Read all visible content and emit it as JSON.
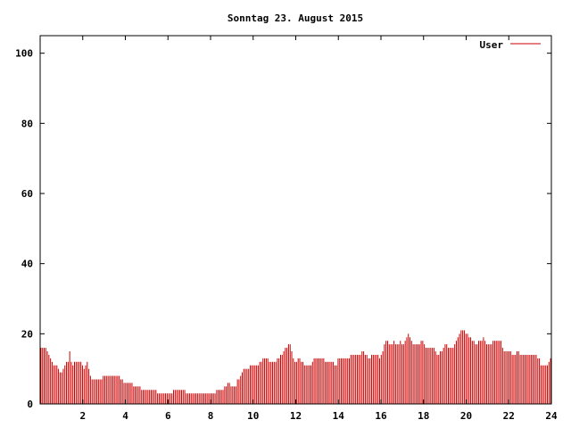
{
  "chart_data": {
    "type": "bar",
    "title": "Sonntag 23. August 2015",
    "xlabel": "",
    "ylabel": "",
    "xlim": [
      0,
      24
    ],
    "ylim": [
      0,
      105
    ],
    "grid": false,
    "legend": "top-right",
    "x_ticks": [
      2,
      4,
      6,
      8,
      10,
      12,
      14,
      16,
      18,
      20,
      22,
      24
    ],
    "y_ticks": [
      0,
      20,
      40,
      60,
      80,
      100
    ],
    "series": [
      {
        "name": "User",
        "color": "#cc0000",
        "values": [
          16,
          16,
          16,
          16,
          15,
          14,
          13,
          12,
          11,
          11,
          11,
          10,
          9,
          9,
          10,
          11,
          12,
          12,
          15,
          12,
          11,
          12,
          12,
          12,
          12,
          12,
          11,
          10,
          11,
          12,
          10,
          8,
          7,
          7,
          7,
          7,
          7,
          7,
          7,
          8,
          8,
          8,
          8,
          8,
          8,
          8,
          8,
          8,
          8,
          8,
          7,
          7,
          6,
          6,
          6,
          6,
          6,
          6,
          5,
          5,
          5,
          5,
          5,
          4,
          4,
          4,
          4,
          4,
          4,
          4,
          4,
          4,
          4,
          3,
          3,
          3,
          3,
          3,
          3,
          3,
          3,
          3,
          3,
          4,
          4,
          4,
          4,
          4,
          4,
          4,
          4,
          3,
          3,
          3,
          3,
          3,
          3,
          3,
          3,
          3,
          3,
          3,
          3,
          3,
          3,
          3,
          3,
          3,
          3,
          3,
          4,
          4,
          4,
          4,
          4,
          5,
          5,
          6,
          6,
          5,
          5,
          5,
          5,
          7,
          7,
          8,
          9,
          10,
          10,
          10,
          10,
          11,
          11,
          11,
          11,
          11,
          11,
          12,
          12,
          13,
          13,
          13,
          13,
          12,
          12,
          12,
          12,
          12,
          13,
          13,
          14,
          14,
          15,
          16,
          16,
          17,
          17,
          15,
          13,
          12,
          12,
          13,
          13,
          12,
          12,
          11,
          11,
          11,
          11,
          11,
          12,
          13,
          13,
          13,
          13,
          13,
          13,
          13,
          12,
          12,
          12,
          12,
          12,
          12,
          11,
          11,
          13,
          13,
          13,
          13,
          13,
          13,
          13,
          13,
          14,
          14,
          14,
          14,
          14,
          14,
          14,
          15,
          15,
          14,
          14,
          13,
          13,
          14,
          14,
          14,
          14,
          14,
          13,
          14,
          15,
          17,
          18,
          18,
          17,
          17,
          17,
          18,
          17,
          17,
          17,
          18,
          17,
          17,
          18,
          19,
          20,
          19,
          18,
          17,
          17,
          17,
          17,
          17,
          18,
          18,
          17,
          16,
          16,
          16,
          16,
          16,
          16,
          15,
          14,
          14,
          15,
          15,
          16,
          17,
          17,
          16,
          16,
          16,
          16,
          17,
          18,
          19,
          20,
          21,
          21,
          21,
          20,
          20,
          19,
          19,
          18,
          18,
          17,
          17,
          18,
          18,
          18,
          19,
          18,
          17,
          17,
          17,
          17,
          18,
          18,
          18,
          18,
          18,
          18,
          16,
          15,
          15,
          15,
          15,
          15,
          14,
          14,
          14,
          15,
          15,
          14,
          14,
          14,
          14,
          14,
          14,
          14,
          14,
          14,
          14,
          14,
          13,
          13,
          11,
          11,
          11,
          11,
          11,
          12,
          13
        ]
      }
    ]
  }
}
